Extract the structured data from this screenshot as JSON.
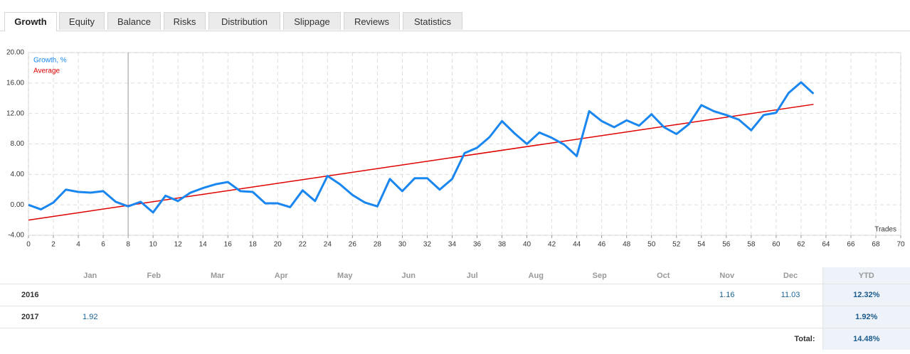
{
  "tabs": [
    "Growth",
    "Equity",
    "Balance",
    "Risks",
    "Distribution",
    "Slippage",
    "Reviews",
    "Statistics"
  ],
  "active_tab": 0,
  "chart_data": {
    "type": "line",
    "x_label": "Trades",
    "series": [
      {
        "name": "Growth, %",
        "color": "#1a86f0",
        "x": [
          0,
          1,
          2,
          3,
          4,
          5,
          6,
          7,
          8,
          9,
          10,
          11,
          12,
          13,
          14,
          15,
          16,
          17,
          18,
          19,
          20,
          21,
          22,
          23,
          24,
          25,
          26,
          27,
          28,
          29,
          30,
          31,
          32,
          33,
          34,
          35,
          36,
          37,
          38,
          39,
          40,
          41,
          42,
          43,
          44,
          45,
          46,
          47,
          48,
          49,
          50,
          51,
          52,
          53,
          54,
          55,
          56,
          57,
          58,
          59,
          60,
          61,
          62,
          63
        ],
        "values": [
          0.0,
          -0.6,
          0.3,
          2.0,
          1.7,
          1.6,
          1.8,
          0.4,
          -0.2,
          0.4,
          -1.0,
          1.2,
          0.5,
          1.6,
          2.2,
          2.7,
          3.0,
          1.8,
          1.7,
          0.2,
          0.2,
          -0.3,
          1.9,
          0.5,
          3.8,
          2.7,
          1.3,
          0.3,
          -0.2,
          3.4,
          1.8,
          3.5,
          3.5,
          2.0,
          3.4,
          6.8,
          7.5,
          8.9,
          11.0,
          9.4,
          8.0,
          9.5,
          8.8,
          7.9,
          6.4,
          12.3,
          11.0,
          10.2,
          11.1,
          10.4,
          11.9,
          10.2,
          9.3,
          10.6,
          13.1,
          12.3,
          11.8,
          11.2,
          9.8,
          11.8,
          12.1,
          14.7,
          16.1,
          14.6
        ]
      },
      {
        "name": "Average",
        "color": "#e00000",
        "x": [
          0,
          63
        ],
        "values": [
          -2.0,
          13.2
        ]
      }
    ],
    "divider_x": 8,
    "xlim": [
      0,
      70
    ],
    "xticks": [
      0,
      2,
      4,
      6,
      8,
      10,
      12,
      14,
      16,
      18,
      20,
      22,
      24,
      26,
      28,
      30,
      32,
      34,
      36,
      38,
      40,
      42,
      44,
      46,
      48,
      50,
      52,
      54,
      56,
      58,
      60,
      62,
      64,
      66,
      68,
      70
    ],
    "ylim": [
      -4,
      20
    ],
    "yticks": [
      {
        "value": -4,
        "label": "-4.00"
      },
      {
        "value": 0,
        "label": "0.00"
      },
      {
        "value": 4,
        "label": "4.00"
      },
      {
        "value": 8,
        "label": "8.00"
      },
      {
        "value": 12,
        "label": "12.00"
      },
      {
        "value": 16,
        "label": "16.00"
      },
      {
        "value": 20,
        "label": "20.00"
      }
    ],
    "grid": true
  },
  "table": {
    "columns": [
      "Jan",
      "Feb",
      "Mar",
      "Apr",
      "May",
      "Jun",
      "Jul",
      "Aug",
      "Sep",
      "Oct",
      "Nov",
      "Dec",
      "YTD"
    ],
    "rows": [
      {
        "year": "2016",
        "cells": [
          null,
          null,
          null,
          null,
          null,
          null,
          null,
          null,
          null,
          null,
          "1.16",
          "11.03"
        ],
        "ytd": "12.32%"
      },
      {
        "year": "2017",
        "cells": [
          "1.92",
          null,
          null,
          null,
          null,
          null,
          null,
          null,
          null,
          null,
          null,
          null
        ],
        "ytd": "1.92%"
      }
    ],
    "total_label": "Total:",
    "total": "14.48%"
  }
}
